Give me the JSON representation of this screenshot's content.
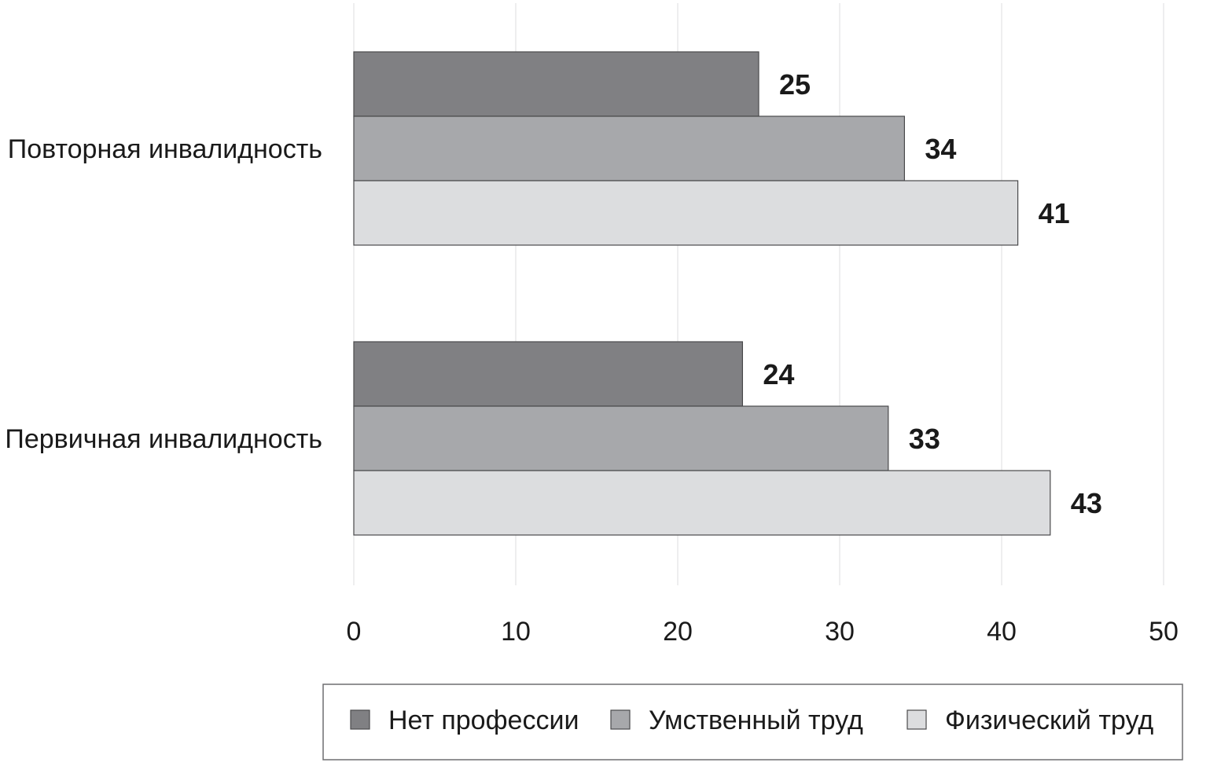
{
  "chart_data": {
    "type": "bar",
    "orientation": "horizontal",
    "categories": [
      "Повторная инвалидность",
      "Первичная инвалидность"
    ],
    "series": [
      {
        "name": "Нет профессии",
        "values": [
          25,
          24
        ],
        "color": "#808083"
      },
      {
        "name": "Умственный труд",
        "values": [
          34,
          33
        ],
        "color": "#a7a8ab"
      },
      {
        "name": "Физический труд",
        "values": [
          41,
          43
        ],
        "color": "#dcdddf"
      }
    ],
    "xlim": [
      0,
      50
    ],
    "xticks": [
      0,
      10,
      20,
      30,
      40,
      50
    ],
    "grid": "vertical",
    "legend_position": "bottom",
    "title": "",
    "xlabel": "",
    "ylabel": ""
  }
}
